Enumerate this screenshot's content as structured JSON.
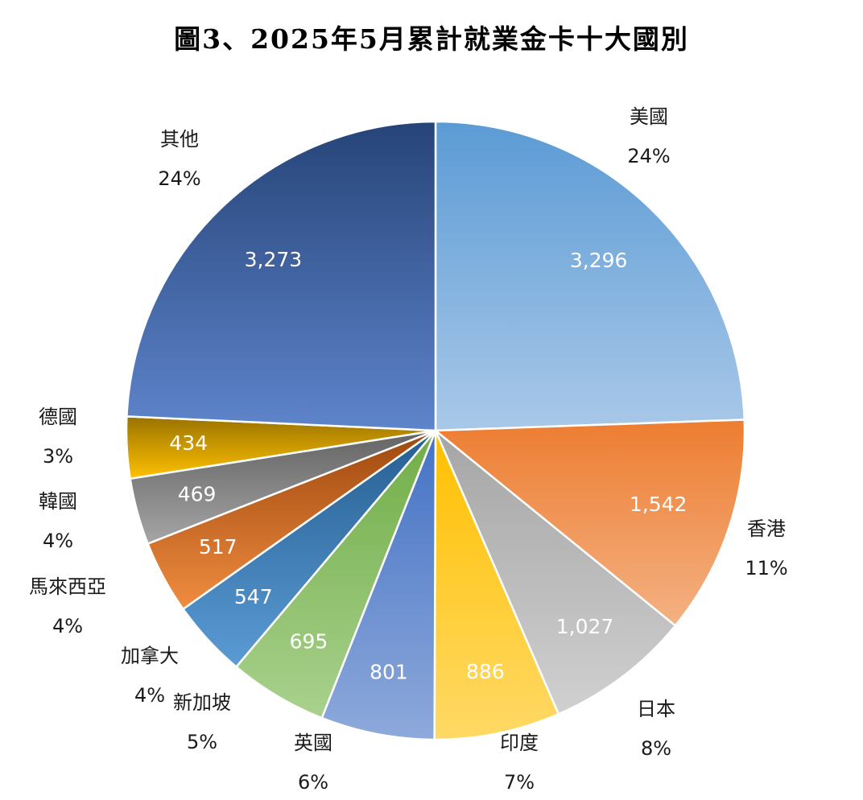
{
  "chart_data": {
    "type": "pie",
    "title": "圖3、2025年5月累計就業金卡十大國別",
    "start_angle_deg": 0,
    "direction": "clockwise",
    "slices": [
      {
        "label": "美國",
        "value": 3296,
        "value_label": "3,296",
        "percent_label": "24%",
        "color_top": "#5b9bd5",
        "color_bottom": "#a9c8e8"
      },
      {
        "label": "香港",
        "value": 1542,
        "value_label": "1,542",
        "percent_label": "11%",
        "color_top": "#ed7d31",
        "color_bottom": "#f4b183"
      },
      {
        "label": "日本",
        "value": 1027,
        "value_label": "1,027",
        "percent_label": "8%",
        "color_top": "#a5a5a5",
        "color_bottom": "#d0d0d0"
      },
      {
        "label": "印度",
        "value": 886,
        "value_label": "886",
        "percent_label": "7%",
        "color_top": "#ffc000",
        "color_bottom": "#ffd966"
      },
      {
        "label": "英國",
        "value": 801,
        "value_label": "801",
        "percent_label": "6%",
        "color_top": "#4472c4",
        "color_bottom": "#8ea9db"
      },
      {
        "label": "新加坡",
        "value": 695,
        "value_label": "695",
        "percent_label": "5%",
        "color_top": "#70ad47",
        "color_bottom": "#a9d18e"
      },
      {
        "label": "加拿大",
        "value": 547,
        "value_label": "547",
        "percent_label": "4%",
        "color_top": "#255e91",
        "color_bottom": "#5b9bd5"
      },
      {
        "label": "馬來西亞",
        "value": 517,
        "value_label": "517",
        "percent_label": "4%",
        "color_top": "#9e480e",
        "color_bottom": "#f08c40"
      },
      {
        "label": "韓國",
        "value": 469,
        "value_label": "469",
        "percent_label": "4%",
        "color_top": "#636363",
        "color_bottom": "#a5a5a5"
      },
      {
        "label": "德國",
        "value": 434,
        "value_label": "434",
        "percent_label": "3%",
        "color_top": "#997300",
        "color_bottom": "#ffc000"
      },
      {
        "label": "其他",
        "value": 3273,
        "value_label": "3,273",
        "percent_label": "24%",
        "color_top": "#264478",
        "color_bottom": "#5e84cb"
      }
    ]
  }
}
